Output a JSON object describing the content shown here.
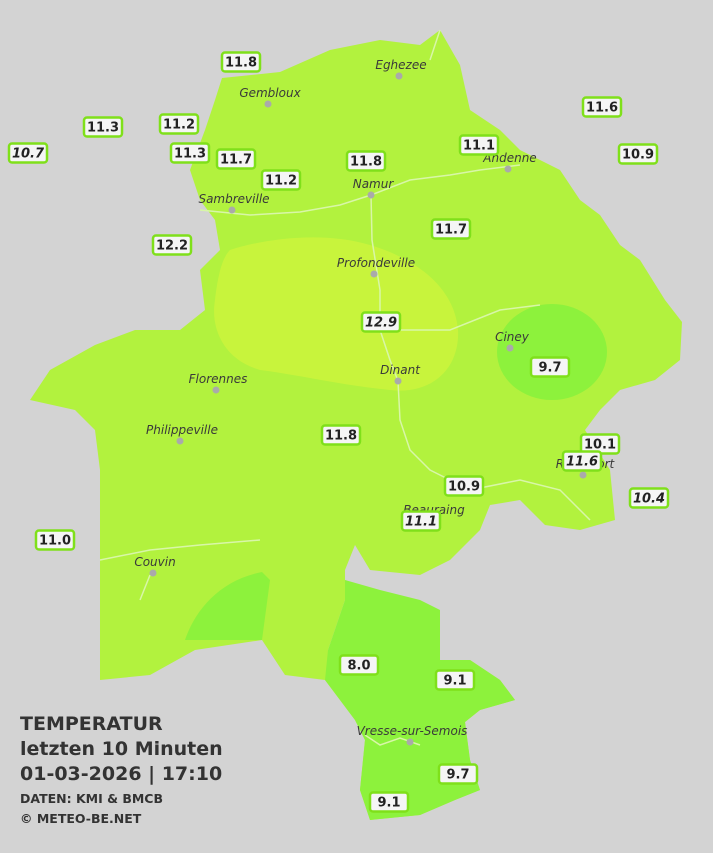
{
  "header": {
    "title": "TEMPERATUR",
    "subtitle": "letzten 10 Minuten",
    "datetime": "01-03-2026  |  17:10",
    "source": "DATEN: KMI & BMCB",
    "copyright": "© METEO-BE.NET"
  },
  "cities": [
    "Eghezee",
    "Gembloux",
    "Andenne",
    "Namur",
    "Sambreville",
    "Profondeville",
    "Ciney",
    "Dinant",
    "Florennes",
    "Philippeville",
    "Rochefort",
    "Beauraing",
    "Couvin",
    "Vresse-sur-Semois"
  ],
  "stations": [
    "11.8",
    "11.3",
    "11.2",
    "10.7",
    "11.3",
    "11.7",
    "11.2",
    "11.8",
    "11.1",
    "11.6",
    "10.9",
    "12.2",
    "11.7",
    "12.9",
    "9.7",
    "11.8",
    "10.1",
    "11.6",
    "10.4",
    "10.9",
    "11.1",
    "11.0",
    "8.0",
    "9.1",
    "9.7",
    "9.1"
  ]
}
